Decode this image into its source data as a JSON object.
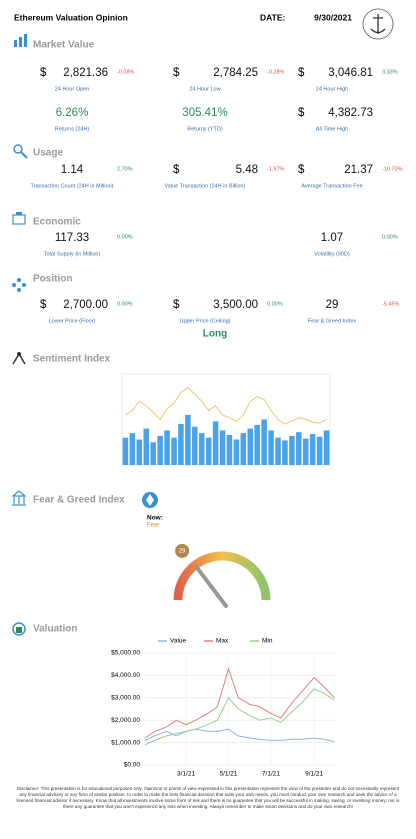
{
  "header": {
    "title": "Ethereum Valuation Opinion",
    "date_label": "DATE:",
    "date": "9/30/2021"
  },
  "market_value": {
    "title": "Market Value",
    "rows": [
      [
        {
          "prefix": "$",
          "value": "2,821.36",
          "change": "-0.08%",
          "label": "24 Hour Open"
        },
        {
          "prefix": "$",
          "value": "2,784.25",
          "change": "-0.28%",
          "label": "24 Hour Low"
        },
        {
          "prefix": "$",
          "value": "3,046.81",
          "change": "3.33%",
          "label": "24 Hour High"
        }
      ],
      [
        {
          "value": "6.26%",
          "label": "Returns (24H)",
          "color": "#2e8b57"
        },
        {
          "value": "305.41%",
          "label": "Returns (YTD)",
          "color": "#2e8b57"
        },
        {
          "prefix": "$",
          "value": "4,382.73",
          "label": "All Time High"
        }
      ]
    ]
  },
  "usage": {
    "title": "Usage",
    "rows": [
      [
        {
          "value": "1.14",
          "change": "2.70%",
          "label": "Transaction Count (24H in Million)"
        },
        {
          "prefix": "$",
          "value": "5.48",
          "change": "-1.97%",
          "label": "Value Transaction (24H in Billion)"
        },
        {
          "prefix": "$",
          "value": "21.37",
          "change": "-10.70%",
          "label": "Average Transaction Fee"
        }
      ]
    ]
  },
  "economic": {
    "title": "Economic",
    "rows": [
      [
        {
          "value": "117.33",
          "change": "0.00%",
          "label": "Total Supply (in Million)"
        },
        {
          "value": "1.07",
          "change": "0.00%",
          "label": "Volatility (30D)"
        }
      ]
    ]
  },
  "position": {
    "title": "Position",
    "rows": [
      [
        {
          "prefix": "$",
          "value": "2,700.00",
          "change": "0.00%",
          "label": "Lower Price (Floor)"
        },
        {
          "prefix": "$",
          "value": "3,500.00",
          "change": "0.00%",
          "label": "Upper Price (Ceiling)"
        },
        {
          "value": "29",
          "change": "-5.45%",
          "label": "Fear & Greed Index"
        }
      ]
    ],
    "recommendation": "Long"
  },
  "sentiment": {
    "title": "Sentiment Index",
    "chart_data": {
      "type": "bar-line",
      "ylim": [
        0,
        100
      ],
      "series": [
        {
          "color": "#4aa3e8",
          "values": [
            30,
            35,
            28,
            40,
            25,
            32,
            38,
            30,
            45,
            55,
            42,
            35,
            30,
            48,
            38,
            33,
            28,
            35,
            40,
            44,
            50,
            38,
            30,
            27,
            32,
            36,
            29,
            34,
            31,
            38
          ]
        },
        {
          "color": "#f2c46d",
          "values": [
            55,
            60,
            70,
            65,
            58,
            50,
            62,
            68,
            80,
            85,
            78,
            70,
            60,
            65,
            55,
            52,
            48,
            55,
            70,
            75,
            72,
            60,
            50,
            45,
            48,
            52,
            50,
            47,
            46,
            50
          ]
        }
      ]
    }
  },
  "fear_greed": {
    "title": "Fear & Greed Index",
    "now_label": "Now:",
    "state": "Fear",
    "value": 29,
    "range": [
      0,
      100
    ]
  },
  "valuation": {
    "title": "Valuation",
    "chart_data": {
      "type": "line",
      "x": [
        "1/1/21",
        "1/15/21",
        "2/1/21",
        "2/15/21",
        "3/1/21",
        "3/15/21",
        "4/1/21",
        "4/15/21",
        "5/1/21",
        "5/15/21",
        "6/1/21",
        "6/15/21",
        "7/1/21",
        "7/15/21",
        "8/1/21",
        "8/15/21",
        "9/1/21",
        "9/15/21",
        "9/30/21"
      ],
      "xlim": [
        "1/1/21",
        "10/1/21"
      ],
      "xticks": [
        "3/1/21",
        "5/1/21",
        "7/1/21",
        "9/1/21"
      ],
      "ylim": [
        0,
        5000
      ],
      "yticks": [
        {
          "value": 0,
          "label": "$0.00"
        },
        {
          "value": 1000,
          "label": "$1,000.00"
        },
        {
          "value": 2000,
          "label": "$2,000.00"
        },
        {
          "value": 3000,
          "label": "$3,000.00"
        },
        {
          "value": 4000,
          "label": "$4,000.00"
        },
        {
          "value": 5000,
          "label": "$5,000.00"
        }
      ],
      "grid": true,
      "series": [
        {
          "name": "Value",
          "color": "#8fb4e3",
          "values": [
            1100,
            1300,
            1500,
            1300,
            1500,
            1600,
            1500,
            1500,
            1600,
            1300,
            1200,
            1150,
            1100,
            1100,
            1150,
            1150,
            1200,
            1150,
            1050
          ]
        },
        {
          "name": "Max",
          "color": "#e08080",
          "values": [
            1200,
            1500,
            1700,
            2000,
            1800,
            2000,
            2300,
            2600,
            4300,
            3000,
            2700,
            2600,
            2300,
            2100,
            2800,
            3300,
            3900,
            3500,
            3000
          ]
        },
        {
          "name": "Min",
          "color": "#9ccc8a",
          "values": [
            900,
            1100,
            1300,
            1400,
            1500,
            1600,
            1800,
            2000,
            3000,
            2500,
            2200,
            2000,
            2100,
            1900,
            2400,
            2800,
            3400,
            3200,
            2900
          ]
        }
      ]
    }
  },
  "disclaimer": "Disclaimer: This presentation is for educational purposes only. Opinions or points of view expressed in this presentation represent the view of the presenter and do not necessarily represent any financial advisory or any form of similar position. In order to make the best financial decision that suits your own needs, you must conduct your own research and seek the advice of a licensed financial advisor if necessary. Know that all investments involve some form of risk and there is no guarantee that you will be successful in making, saving, or investing money; nor is there any guarantee that you won't experience any loss when investing. Always remember to make smart decisions and do your own research!"
}
